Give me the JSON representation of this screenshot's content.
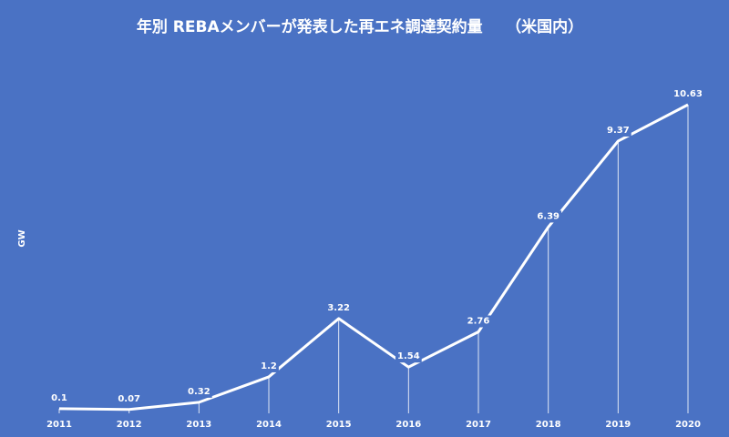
{
  "chart_data": {
    "type": "line",
    "title": "年別 REBAメンバーが発表した再エネ調達契約量　　（米国内）",
    "y_label": "GW",
    "categories": [
      "2011",
      "2012",
      "2013",
      "2014",
      "2015",
      "2016",
      "2017",
      "2018",
      "2019",
      "2020"
    ],
    "series": [
      {
        "name": "GW",
        "color": "#ffffff",
        "values": [
          0.1,
          0.07,
          0.32,
          1.2,
          3.22,
          1.54,
          2.76,
          6.39,
          9.37,
          10.63
        ]
      }
    ],
    "background": "#4a72c4"
  }
}
